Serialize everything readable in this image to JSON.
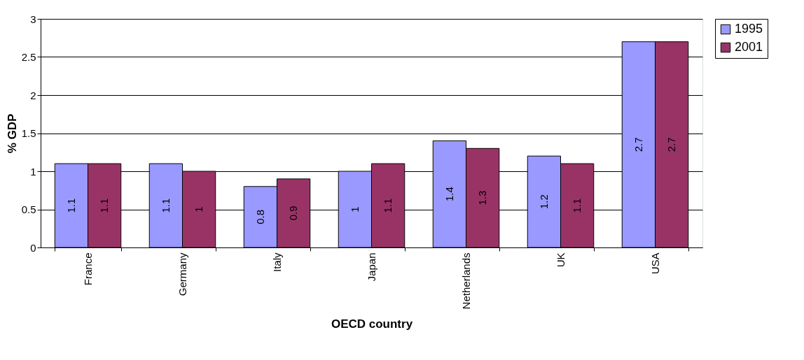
{
  "chart_data": {
    "type": "bar",
    "xlabel": "OECD country",
    "ylabel": "% GDP",
    "categories": [
      "France",
      "Germany",
      "Italy",
      "Japan",
      "Netherlands",
      "UK",
      "USA"
    ],
    "series": [
      {
        "name": "1995",
        "color": "#9999ff",
        "values": [
          1.1,
          1.1,
          0.8,
          1,
          1.4,
          1.2,
          2.7
        ]
      },
      {
        "name": "2001",
        "color": "#993366",
        "values": [
          1.1,
          1,
          0.9,
          1.1,
          1.3,
          1.1,
          2.7
        ]
      }
    ],
    "ylim": [
      0,
      3
    ],
    "yticks": [
      0,
      0.5,
      1,
      1.5,
      2,
      2.5,
      3
    ],
    "grid": "y",
    "legend": "right",
    "data_labels": true
  }
}
